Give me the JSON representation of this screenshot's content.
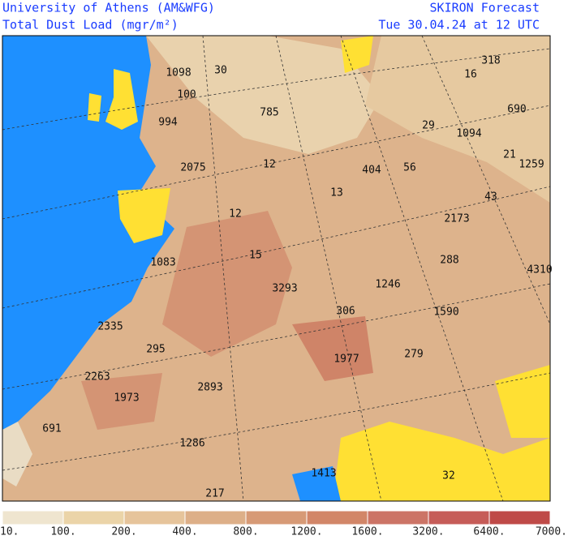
{
  "header": {
    "left": [
      "University of Athens (AM&WFG)",
      "Total Dust Load (mgr/m²)"
    ],
    "right": [
      "SKIRON Forecast",
      "Tue 30.04.24 at 12 UTC"
    ]
  },
  "map_labels": [
    1098,
    30,
    100,
    994,
    785,
    16,
    318,
    690,
    29,
    1094,
    21,
    1259,
    2075,
    12,
    404,
    56,
    13,
    43,
    2173,
    12,
    1083,
    15,
    288,
    4310,
    3293,
    1246,
    306,
    1590,
    2335,
    295,
    1977,
    279,
    2263,
    2893,
    1973,
    691,
    1286,
    1413,
    217,
    32
  ],
  "colorbar": {
    "labels": [
      "10.",
      "100.",
      "200.",
      "400.",
      "800.",
      "1200.",
      "1600.",
      "3200.",
      "6400.",
      "7000."
    ],
    "colors": [
      "#efe5cf",
      "#ebd4a8",
      "#e6c49b",
      "#ddaf88",
      "#d79a76",
      "#d28668",
      "#cc7466",
      "#c65c58",
      "#bf4a48"
    ]
  }
}
